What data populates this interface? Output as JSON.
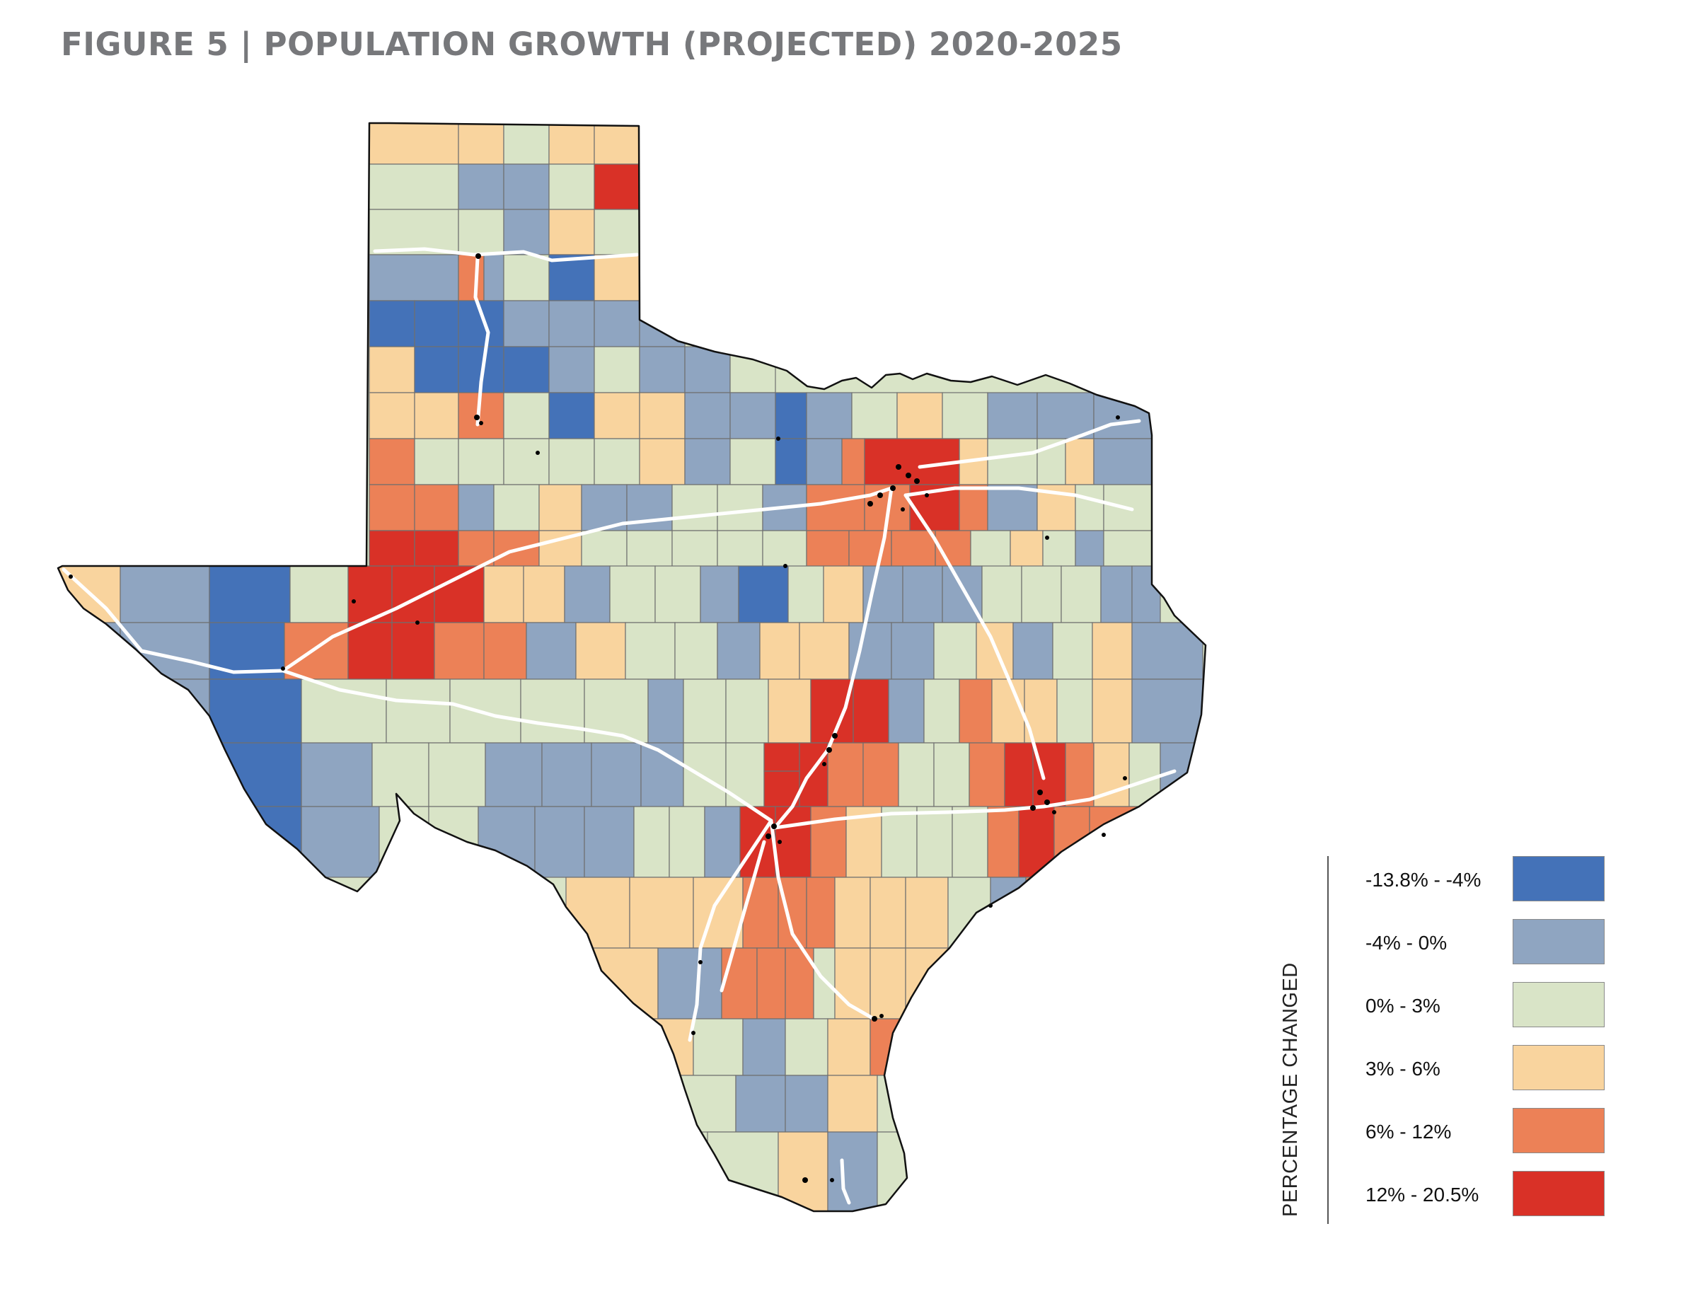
{
  "figure": {
    "title": "FIGURE 5 | POPULATION GROWTH (PROJECTED) 2020-2025"
  },
  "legend": {
    "axis_title": "PERCENTAGE CHANGED",
    "items": [
      {
        "label": "-13.8% - -4%",
        "color": "#4472b8",
        "min": -13.8,
        "max": -4
      },
      {
        "label": "-4% - 0%",
        "color": "#8fa5c1",
        "min": -4,
        "max": 0
      },
      {
        "label": "0% - 3%",
        "color": "#d9e4c7",
        "min": 0,
        "max": 3
      },
      {
        "label": "3% - 6%",
        "color": "#f9d49e",
        "min": 3,
        "max": 6
      },
      {
        "label": "6% - 12%",
        "color": "#ec8157",
        "min": 6,
        "max": 12
      },
      {
        "label": "12% - 20.5%",
        "color": "#d93127",
        "min": 12,
        "max": 20.5
      }
    ]
  },
  "map": {
    "region": "Texas",
    "unit": "county",
    "boundary_color": "#111111",
    "county_line_color": "#6f6f6f",
    "highway_color": "#ffffff",
    "city_dot_color": "#000000"
  }
}
